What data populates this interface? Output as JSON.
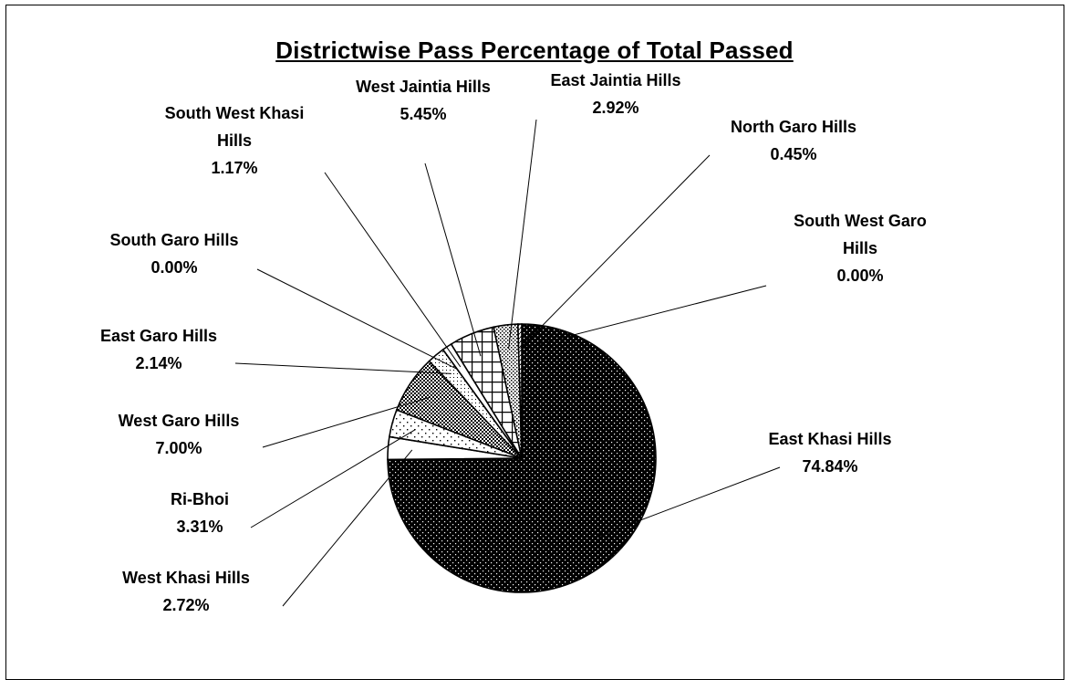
{
  "chart_data": {
    "type": "pie",
    "title": "Districtwise Pass Percentage of Total Passed",
    "slices": [
      {
        "name": "East Khasi Hills",
        "value": 74.84,
        "label": "74.84%",
        "pattern": "dense-dots-dark"
      },
      {
        "name": "West Khasi Hills",
        "value": 2.72,
        "label": "2.72%",
        "pattern": "white"
      },
      {
        "name": "Ri-Bhoi",
        "value": 3.31,
        "label": "3.31%",
        "pattern": "sparse-dots"
      },
      {
        "name": "West Garo Hills",
        "value": 7.0,
        "label": "7.00%",
        "pattern": "checker-dark"
      },
      {
        "name": "East Garo Hills",
        "value": 2.14,
        "label": "2.14%",
        "pattern": "fine-dots"
      },
      {
        "name": "South Garo Hills",
        "value": 0.0,
        "label": "0.00%",
        "pattern": "diag-cross"
      },
      {
        "name": "South West Khasi Hills",
        "value": 1.17,
        "label": "1.17%",
        "pattern": "white"
      },
      {
        "name": "West Jaintia Hills",
        "value": 5.45,
        "label": "5.45%",
        "pattern": "grid"
      },
      {
        "name": "East Jaintia Hills",
        "value": 2.92,
        "label": "2.92%",
        "pattern": "medium-dots"
      },
      {
        "name": "North Garo Hills",
        "value": 0.45,
        "label": "0.45%",
        "pattern": "hatch"
      },
      {
        "name": "South West Garo Hills",
        "value": 0.0,
        "label": "0.00%",
        "pattern": "white"
      }
    ]
  }
}
